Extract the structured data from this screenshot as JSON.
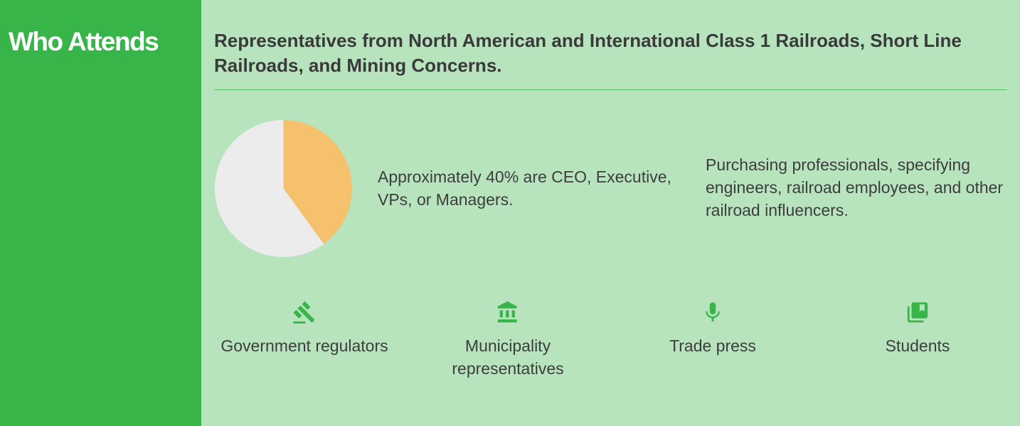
{
  "sidebar": {
    "title": "Who Attends"
  },
  "main": {
    "headline": "Representatives from North American and International Class 1 Railroads, Short Line Railroads, and Mining Concerns.",
    "stat_text": "Approximately 40% are CEO, Executive, VPs, or Managers.",
    "role_text": "Purchasing professionals, specifying engineers, railroad employees, and other railroad influencers.",
    "attendees": [
      {
        "label": "Government regulators",
        "icon": "gavel-icon"
      },
      {
        "label": "Municipality representatives",
        "icon": "bank-building-icon"
      },
      {
        "label": "Trade press",
        "icon": "microphone-icon"
      },
      {
        "label": "Students",
        "icon": "library-books-icon"
      }
    ]
  },
  "chart_data": {
    "type": "pie",
    "slices": [
      {
        "value": 40,
        "color": "#f5c16c"
      },
      {
        "value": 60,
        "color": "#ececec"
      }
    ],
    "start_angle_deg": 0,
    "direction": "clockwise"
  },
  "colors": {
    "sidebar": "#38b549",
    "background": "#b7e4bd",
    "icon": "#38b549",
    "text": "#3d3d3d"
  }
}
